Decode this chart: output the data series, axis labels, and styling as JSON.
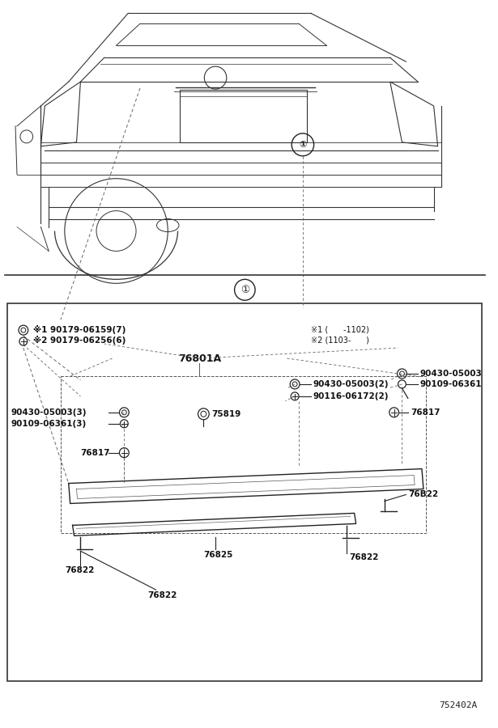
{
  "bg_color": "#ffffff",
  "fig_width": 6.15,
  "fig_height": 9.0,
  "dpi": 100,
  "diagram_code": "752402A",
  "car_color": "#333333",
  "line_color": "#222222",
  "dash_color": "#666666"
}
